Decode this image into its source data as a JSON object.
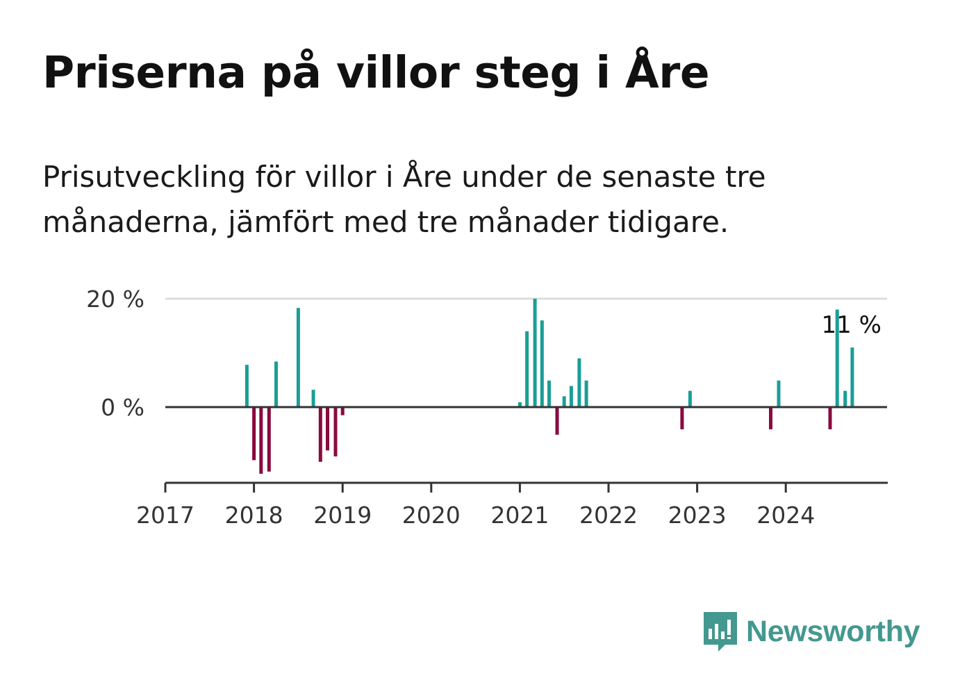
{
  "header": {
    "title": "Priserna på villor steg i Åre",
    "subtitle": "Prisutveckling för villor i Åre under de senaste tre månaderna, jämfört med tre månader tidigare."
  },
  "colors": {
    "positive": "#1a9e96",
    "negative": "#8a0a3f",
    "axis": "#333333",
    "grid": "#dddddd",
    "brand": "#43988f"
  },
  "chart_data": {
    "type": "bar",
    "x_axis": {
      "min": 2017,
      "max": 2025.15,
      "ticks": [
        "2017",
        "2018",
        "2019",
        "2020",
        "2021",
        "2022",
        "2023",
        "2024"
      ]
    },
    "y_axis": {
      "min": -14,
      "max": 20,
      "ticks": [
        {
          "value": 20,
          "label": "20 %"
        },
        {
          "value": 0,
          "label": "0 %"
        }
      ]
    },
    "grid": true,
    "annotation": {
      "text": "11 %",
      "x": 2024.75,
      "y": 11
    },
    "values": [
      {
        "x": 2017.92,
        "y": 7.8
      },
      {
        "x": 2018.0,
        "y": -9.8
      },
      {
        "x": 2018.08,
        "y": -12.3
      },
      {
        "x": 2018.17,
        "y": -11.9
      },
      {
        "x": 2018.25,
        "y": 8.4
      },
      {
        "x": 2018.5,
        "y": 18.3
      },
      {
        "x": 2018.67,
        "y": 3.2
      },
      {
        "x": 2018.75,
        "y": -10.1
      },
      {
        "x": 2018.83,
        "y": -8.0
      },
      {
        "x": 2018.92,
        "y": -9.1
      },
      {
        "x": 2019.0,
        "y": -1.5
      },
      {
        "x": 2021.0,
        "y": 0.9
      },
      {
        "x": 2021.08,
        "y": 14.0
      },
      {
        "x": 2021.17,
        "y": 20.0
      },
      {
        "x": 2021.25,
        "y": 16.0
      },
      {
        "x": 2021.33,
        "y": 4.9
      },
      {
        "x": 2021.42,
        "y": -5.1
      },
      {
        "x": 2021.5,
        "y": 2.0
      },
      {
        "x": 2021.58,
        "y": 3.9
      },
      {
        "x": 2021.67,
        "y": 9.0
      },
      {
        "x": 2021.75,
        "y": 4.9
      },
      {
        "x": 2022.83,
        "y": -4.1
      },
      {
        "x": 2022.92,
        "y": 3.0
      },
      {
        "x": 2023.83,
        "y": -4.1
      },
      {
        "x": 2023.92,
        "y": 4.9
      },
      {
        "x": 2024.5,
        "y": -4.1
      },
      {
        "x": 2024.58,
        "y": 18.0
      },
      {
        "x": 2024.67,
        "y": 3.0
      },
      {
        "x": 2024.75,
        "y": 11.0
      }
    ]
  },
  "logo": {
    "text": "Newsworthy",
    "icon": "newsworthy-logo-icon"
  }
}
